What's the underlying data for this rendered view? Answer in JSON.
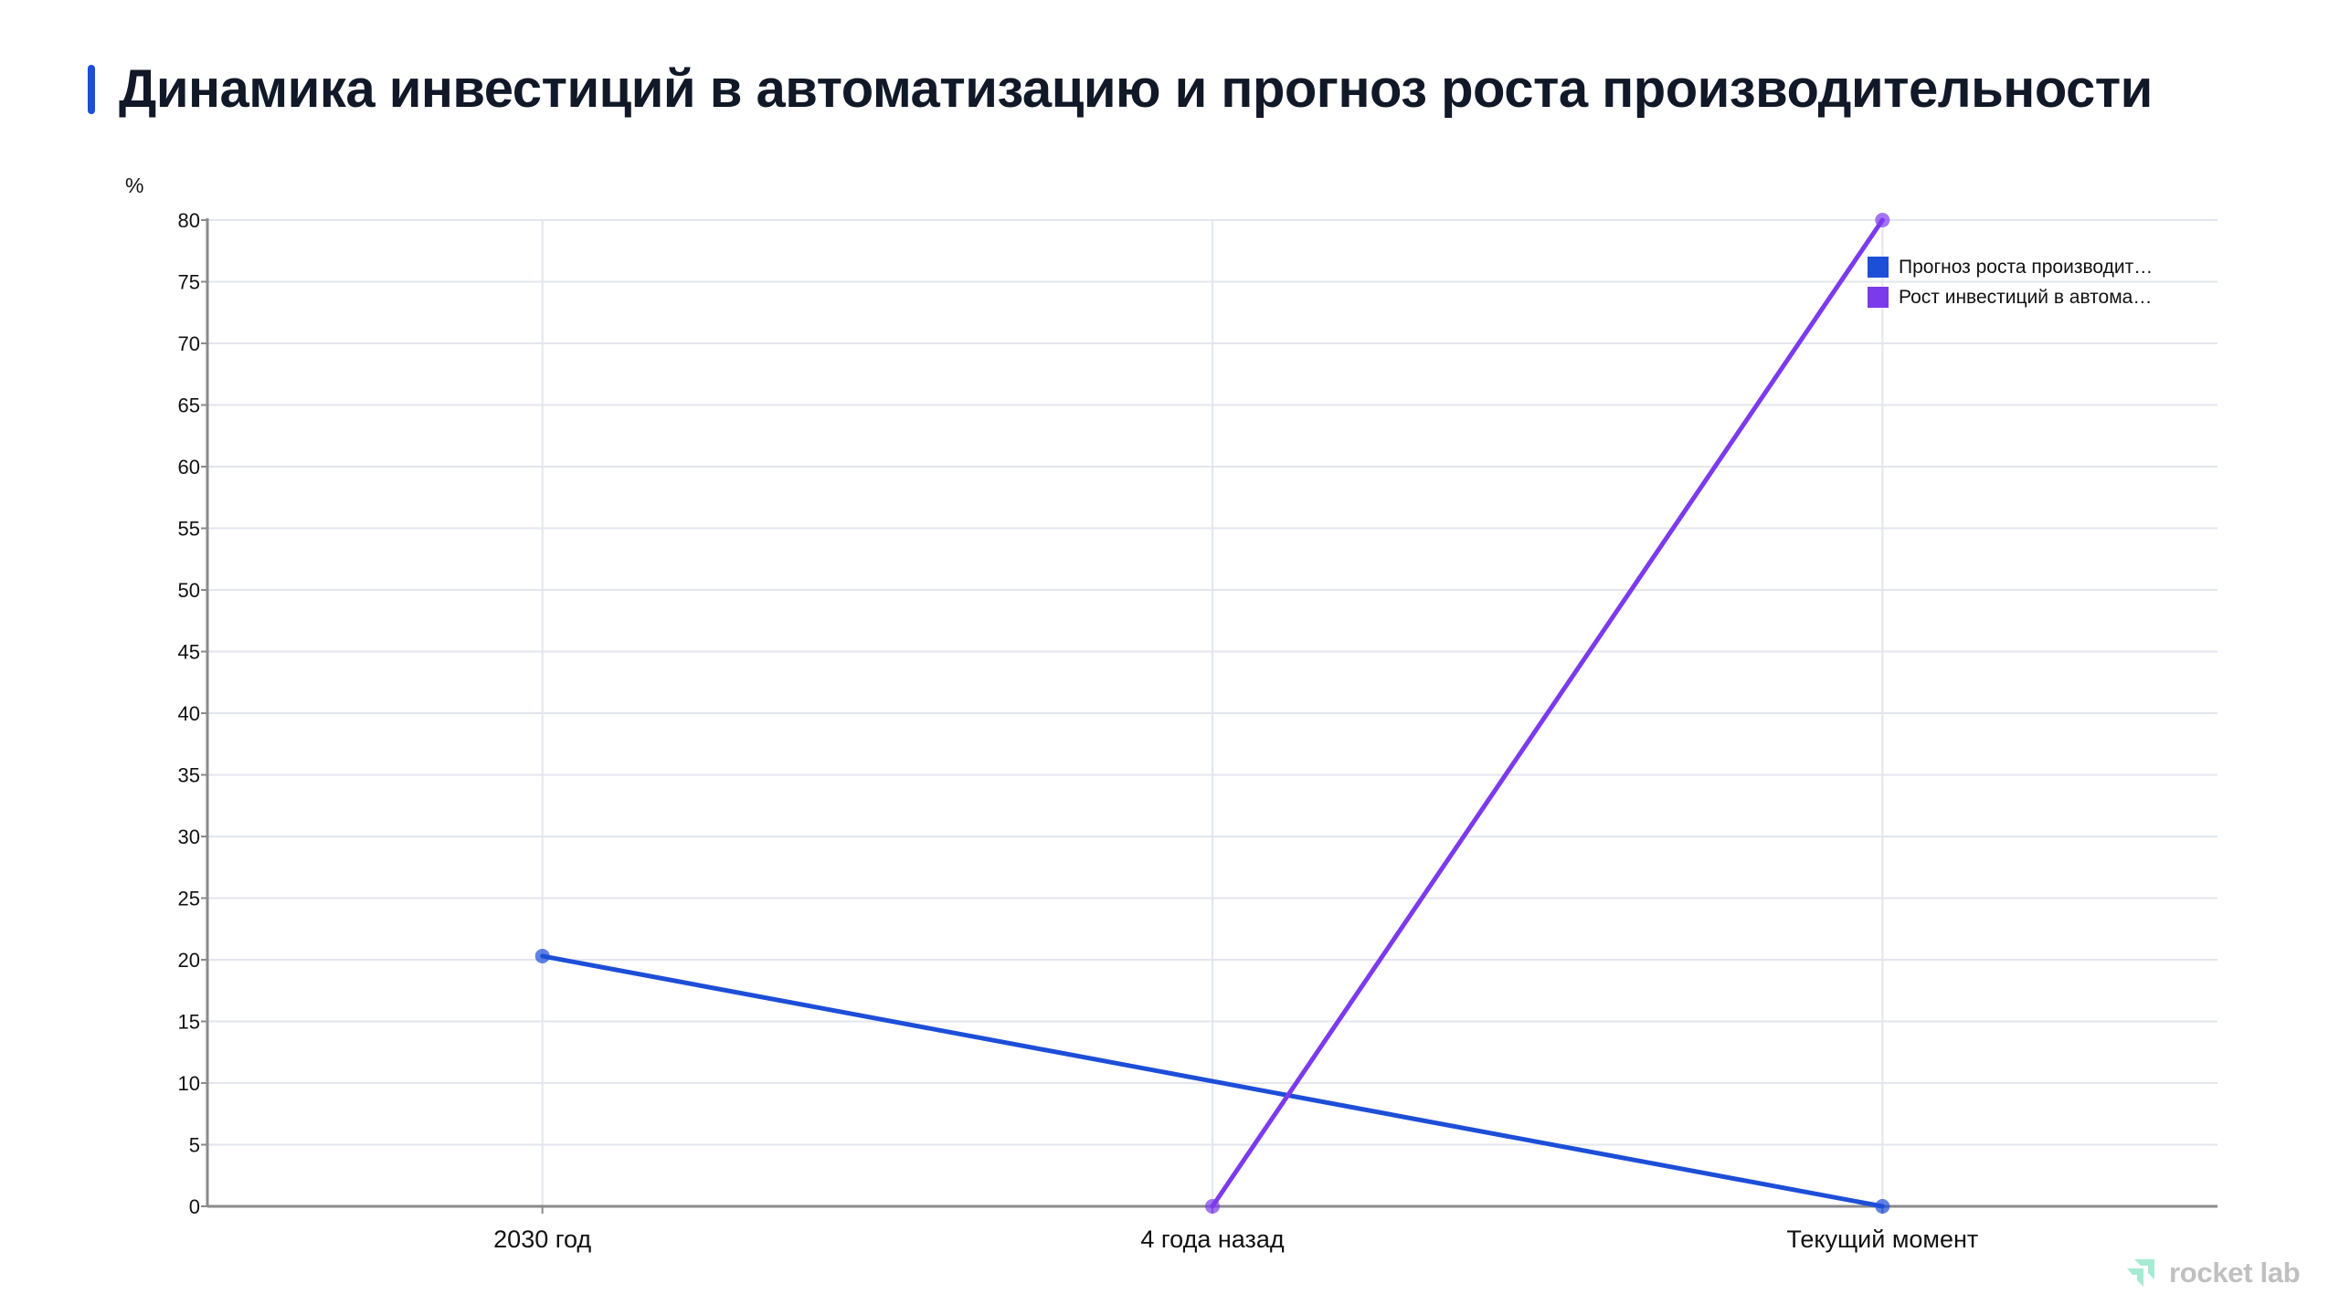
{
  "header": {
    "title": "Динамика инвестиций в автоматизацию и прогноз роста производительности",
    "accent_color": "#1d4ed8"
  },
  "brand": {
    "name": "rocket lab",
    "icon": "rocket-lab-arrow-icon",
    "icon_color": "#a7ead3",
    "text_color": "#c0c0c0"
  },
  "chart_data": {
    "type": "line",
    "title": "Динамика инвестиций в автоматизацию и прогноз роста производительности",
    "xlabel": "",
    "ylabel": "%",
    "categories": [
      "2030 год",
      "4 года назад",
      "Текущий момент"
    ],
    "series": [
      {
        "name": "Прогноз роста производительности",
        "legend_label": "Прогноз роста производит…",
        "color": "#1d4ed8",
        "values": [
          20.3,
          null,
          0
        ]
      },
      {
        "name": "Рост инвестиций в автоматизацию",
        "legend_label": "Рост инвестиций в автома…",
        "color": "#7c3aed",
        "values": [
          null,
          0,
          80
        ]
      }
    ],
    "ylim": [
      0,
      80
    ],
    "yticks": [
      0,
      5,
      10,
      15,
      20,
      25,
      30,
      35,
      40,
      45,
      50,
      55,
      60,
      65,
      70,
      75,
      80
    ],
    "grid": true,
    "legend_position": "top-right"
  }
}
